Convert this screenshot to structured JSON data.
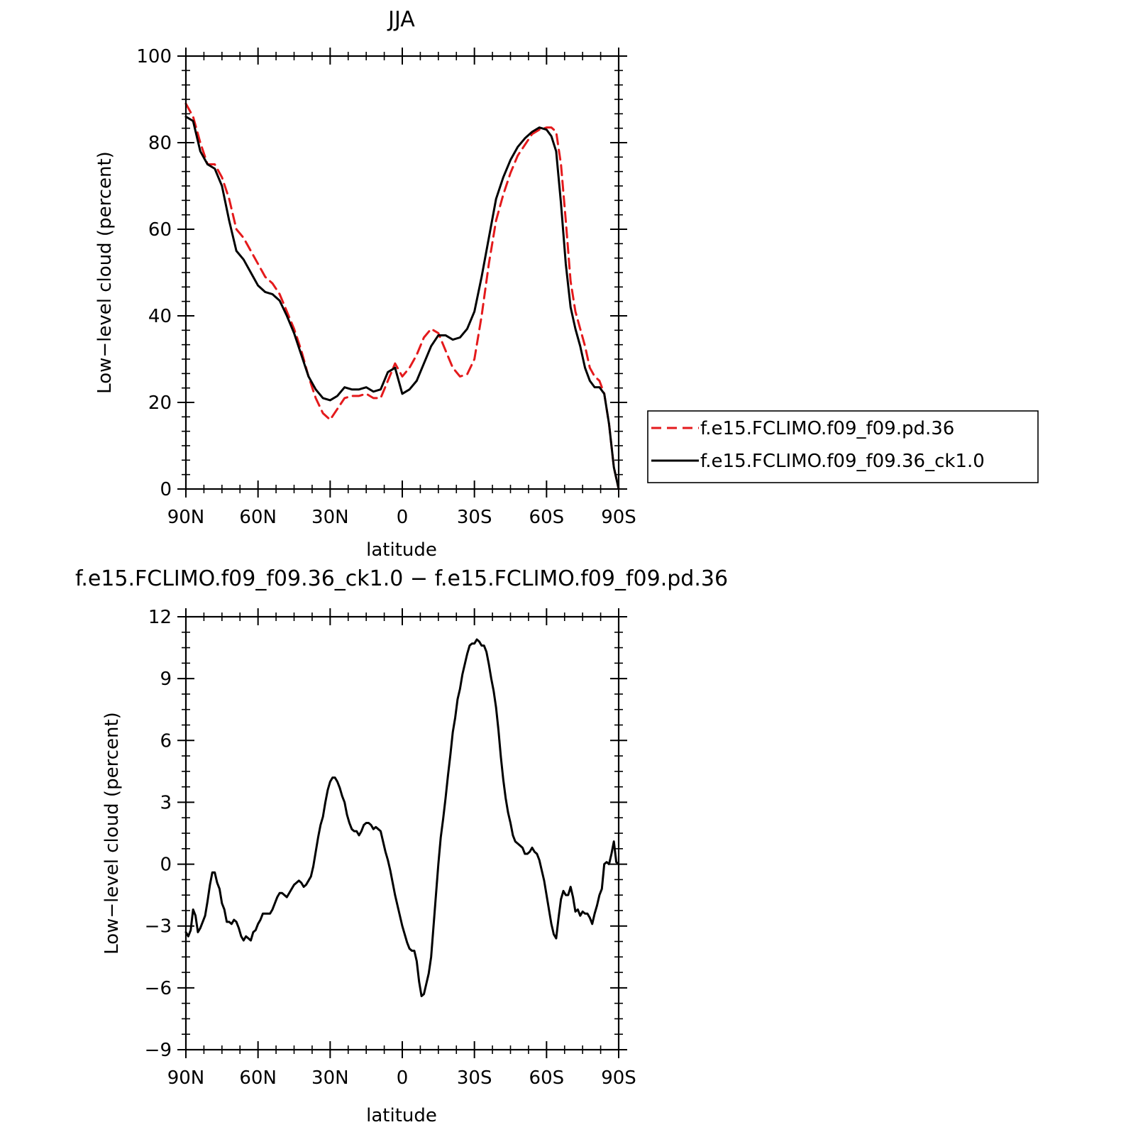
{
  "colors": {
    "control": "#e41a1c",
    "experiment": "#000000",
    "axis": "#000000"
  },
  "chart_data": [
    {
      "type": "line",
      "title": "JJA",
      "xlabel": "latitude",
      "ylabel": "Low−level cloud (percent)",
      "xlim": [
        -90,
        90
      ],
      "ylim": [
        0,
        100
      ],
      "x_ticks": [
        -90,
        -60,
        -30,
        0,
        30,
        60,
        90
      ],
      "x_tick_labels": [
        "90N",
        "60N",
        "30N",
        "0",
        "30S",
        "60S",
        "90S"
      ],
      "y_ticks": [
        0,
        20,
        40,
        60,
        80,
        100
      ],
      "y_tick_labels": [
        "0",
        "20",
        "40",
        "60",
        "80",
        "100"
      ],
      "x_note": "x values are latitude in degrees; negative = north, positive = south",
      "legend_position": "right",
      "series": [
        {
          "name": "f.e15.FCLIMO.f09_f09.pd.36",
          "style": "dashed",
          "color": "#e41a1c",
          "x": [
            -90,
            -87,
            -84,
            -81,
            -78,
            -75,
            -72,
            -69,
            -66,
            -63,
            -60,
            -57,
            -54,
            -51,
            -48,
            -45,
            -42,
            -39,
            -36,
            -33,
            -30,
            -27,
            -24,
            -21,
            -18,
            -15,
            -12,
            -9,
            -6,
            -3,
            0,
            3,
            6,
            9,
            12,
            15,
            18,
            21,
            24,
            27,
            30,
            33,
            36,
            39,
            42,
            45,
            48,
            51,
            54,
            57,
            60,
            62,
            64,
            66,
            68,
            70,
            72,
            74,
            76,
            78,
            80,
            82,
            84,
            86,
            88,
            90
          ],
          "y": [
            89,
            86,
            80,
            75,
            75,
            72,
            67,
            60,
            58,
            55,
            52,
            49,
            47.5,
            45,
            41,
            37,
            32,
            26,
            21,
            17.5,
            16,
            18.5,
            21,
            21.5,
            21.5,
            22,
            21,
            21,
            25,
            29,
            26,
            28,
            31,
            35,
            37,
            36,
            32,
            28,
            26,
            26.5,
            30,
            40,
            52,
            62,
            68,
            73,
            77,
            79.5,
            82,
            83,
            83.5,
            83.5,
            82.5,
            75,
            62,
            48,
            41,
            37,
            33,
            28,
            26,
            25,
            22,
            15,
            5,
            0
          ]
        },
        {
          "name": "f.e15.FCLIMO.f09_f09.36_ck1.0",
          "style": "solid",
          "color": "#000000",
          "x": [
            -90,
            -87,
            -84,
            -81,
            -78,
            -75,
            -72,
            -69,
            -66,
            -63,
            -60,
            -57,
            -54,
            -51,
            -48,
            -45,
            -42,
            -39,
            -36,
            -33,
            -30,
            -27,
            -24,
            -21,
            -18,
            -15,
            -12,
            -9,
            -6,
            -3,
            0,
            3,
            6,
            9,
            12,
            15,
            18,
            21,
            24,
            27,
            30,
            33,
            36,
            39,
            42,
            45,
            48,
            51,
            54,
            57,
            60,
            62,
            64,
            66,
            68,
            70,
            72,
            74,
            76,
            78,
            80,
            82,
            84,
            86,
            88,
            90
          ],
          "y": [
            86,
            85,
            78,
            75,
            74,
            70,
            62,
            55,
            53,
            50,
            47,
            45.5,
            45,
            43.5,
            40,
            36,
            31,
            26,
            23,
            21,
            20.5,
            21.5,
            23.5,
            23,
            23,
            23.5,
            22.5,
            23,
            27,
            28,
            22,
            23,
            25,
            29,
            33,
            35.5,
            35.5,
            34.5,
            35,
            37,
            41,
            49,
            58,
            67,
            72,
            76,
            79,
            81,
            82.5,
            83.5,
            83,
            81.5,
            78,
            66,
            52,
            42,
            37,
            33,
            28,
            25,
            23.5,
            23.5,
            22,
            15,
            5,
            0
          ]
        }
      ]
    },
    {
      "type": "line",
      "title": "f.e15.FCLIMO.f09_f09.36_ck1.0 − f.e15.FCLIMO.f09_f09.pd.36",
      "xlabel": "latitude",
      "ylabel": "Low−level cloud (percent)",
      "xlim": [
        -90,
        90
      ],
      "ylim": [
        -9,
        12
      ],
      "x_ticks": [
        -90,
        -60,
        -30,
        0,
        30,
        60,
        90
      ],
      "x_tick_labels": [
        "90N",
        "60N",
        "30N",
        "0",
        "30S",
        "60S",
        "90S"
      ],
      "y_ticks": [
        -9,
        -6,
        -3,
        0,
        3,
        6,
        9,
        12
      ],
      "y_tick_labels": [
        "−9",
        "−6",
        "−3",
        "0",
        "3",
        "6",
        "9",
        "12"
      ],
      "series": [
        {
          "style": "solid",
          "color": "#000000",
          "x": [
            -90,
            -89,
            -88,
            -87,
            -86,
            -85,
            -84,
            -83,
            -82,
            -81,
            -80,
            -79,
            -78,
            -77,
            -76,
            -75,
            -74,
            -73,
            -72,
            -71,
            -70,
            -69,
            -68,
            -67,
            -66,
            -65,
            -64,
            -63,
            -62,
            -61,
            -60,
            -59,
            -58,
            -57,
            -56,
            -55,
            -54,
            -53,
            -52,
            -51,
            -50,
            -48,
            -46,
            -45,
            -44,
            -43,
            -42,
            -41,
            -40,
            -39,
            -38,
            -37,
            -36,
            -35,
            -34,
            -33,
            -32,
            -31,
            -30,
            -29,
            -28,
            -27,
            -26,
            -25,
            -24,
            -23,
            -22,
            -21,
            -20,
            -19,
            -18,
            -17,
            -16,
            -15,
            -14,
            -13,
            -12,
            -11,
            -10,
            -9,
            -8,
            -7,
            -6,
            -5,
            -4,
            -3,
            -2,
            -1,
            0,
            1,
            2,
            3,
            4,
            5,
            6,
            7,
            8,
            9,
            10,
            11,
            12,
            13,
            14,
            15,
            16,
            17,
            18,
            19,
            20,
            21,
            22,
            23,
            24,
            25,
            26,
            27,
            28,
            29,
            30,
            31,
            32,
            33,
            34,
            35,
            36,
            37,
            38,
            39,
            40,
            41,
            42,
            43,
            44,
            45,
            46,
            47,
            48,
            49,
            50,
            51,
            52,
            53,
            54,
            55,
            56,
            57,
            58,
            59,
            60,
            61,
            62,
            63,
            64,
            65,
            66,
            67,
            68,
            69,
            70,
            71,
            72,
            73,
            74,
            75,
            76,
            77,
            78,
            79,
            80,
            81,
            82,
            83,
            84,
            85,
            86,
            87,
            88,
            89,
            90
          ],
          "y": [
            -3.3,
            -3.5,
            -3.2,
            -2.2,
            -2.5,
            -3.3,
            -3.1,
            -2.8,
            -2.5,
            -1.8,
            -1.0,
            -0.4,
            -0.4,
            -0.9,
            -1.2,
            -1.9,
            -2.2,
            -2.8,
            -2.8,
            -2.9,
            -2.7,
            -2.8,
            -3.1,
            -3.5,
            -3.7,
            -3.5,
            -3.6,
            -3.7,
            -3.3,
            -3.2,
            -2.9,
            -2.7,
            -2.4,
            -2.4,
            -2.4,
            -2.4,
            -2.2,
            -1.9,
            -1.6,
            -1.4,
            -1.4,
            -1.6,
            -1.2,
            -1.0,
            -0.9,
            -0.8,
            -0.9,
            -1.1,
            -1.0,
            -0.8,
            -0.6,
            -0.1,
            0.6,
            1.3,
            1.9,
            2.3,
            3.0,
            3.6,
            4.0,
            4.2,
            4.2,
            4.0,
            3.7,
            3.3,
            3.0,
            2.4,
            2.0,
            1.7,
            1.6,
            1.6,
            1.4,
            1.6,
            1.9,
            2.0,
            2.0,
            1.9,
            1.7,
            1.8,
            1.7,
            1.6,
            1.1,
            0.6,
            0.2,
            -0.3,
            -0.9,
            -1.5,
            -2.0,
            -2.5,
            -3.0,
            -3.4,
            -3.8,
            -4.1,
            -4.2,
            -4.2,
            -4.7,
            -5.7,
            -6.4,
            -6.3,
            -5.8,
            -5.3,
            -4.5,
            -3.0,
            -1.5,
            0.0,
            1.3,
            2.2,
            3.2,
            4.3,
            5.3,
            6.4,
            7.1,
            8.0,
            8.5,
            9.2,
            9.7,
            10.2,
            10.6,
            10.7,
            10.7,
            10.9,
            10.8,
            10.6,
            10.6,
            10.3,
            9.7,
            9.0,
            8.4,
            7.6,
            6.5,
            5.2,
            4.1,
            3.2,
            2.5,
            2.0,
            1.4,
            1.1,
            1.0,
            0.9,
            0.8,
            0.5,
            0.5,
            0.6,
            0.8,
            0.6,
            0.5,
            0.2,
            -0.3,
            -0.8,
            -1.5,
            -2.2,
            -2.9,
            -3.4,
            -3.6,
            -2.6,
            -1.7,
            -1.3,
            -1.5,
            -1.5,
            -1.1,
            -1.6,
            -2.3,
            -2.2,
            -2.5,
            -2.3,
            -2.4,
            -2.4,
            -2.6,
            -2.9,
            -2.4,
            -2.0,
            -1.5,
            -1.2,
            0.0,
            0.1,
            0.0,
            0.5,
            1.1,
            0.1,
            0.0
          ]
        }
      ]
    }
  ]
}
